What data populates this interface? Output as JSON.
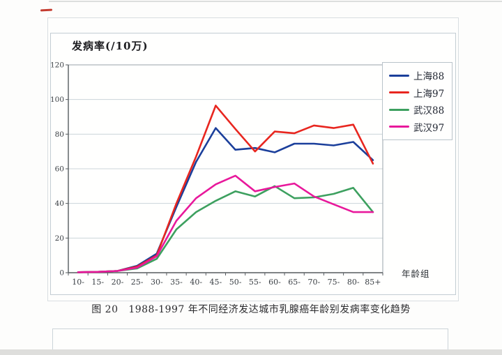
{
  "chart_data": {
    "type": "line",
    "title": "发病率(/10万)",
    "xlabel": "年龄组",
    "ylabel": "",
    "ylim": [
      0,
      120
    ],
    "yticks": [
      0,
      20,
      40,
      60,
      80,
      100,
      120
    ],
    "grid": true,
    "legend_position": "right",
    "categories": [
      "10-",
      "15-",
      "20-",
      "25-",
      "30-",
      "35-",
      "40-",
      "45-",
      "50-",
      "55-",
      "60-",
      "65-",
      "70-",
      "75-",
      "80-",
      "85+"
    ],
    "series": [
      {
        "name": "上海88",
        "color": "#1b3f9b",
        "values": [
          0.3,
          0.5,
          1,
          4,
          11,
          38,
          64,
          83.5,
          71,
          72,
          69.5,
          74.5,
          74.5,
          73.5,
          75.5,
          65
        ]
      },
      {
        "name": "上海97",
        "color": "#e8261f",
        "values": [
          0.3,
          0.5,
          1,
          3.5,
          10,
          40,
          67,
          96.5,
          83,
          70,
          81.5,
          80.5,
          85,
          83.5,
          85.5,
          63
        ]
      },
      {
        "name": "武汉88",
        "color": "#3da05f",
        "values": [
          0.3,
          0.5,
          1,
          2.5,
          8,
          25,
          35,
          41.5,
          47,
          44,
          50,
          43,
          43.5,
          45.5,
          49,
          35
        ]
      },
      {
        "name": "武汉97",
        "color": "#e8189b",
        "values": [
          0.3,
          0.5,
          1,
          3,
          9.5,
          30,
          43,
          51,
          56,
          47,
          49.5,
          51.5,
          44,
          39.5,
          35,
          35
        ]
      }
    ]
  },
  "caption": {
    "text": "图 20   1988-1997 年不同经济发达城市乳腺癌年龄别发病率变化趋势"
  }
}
